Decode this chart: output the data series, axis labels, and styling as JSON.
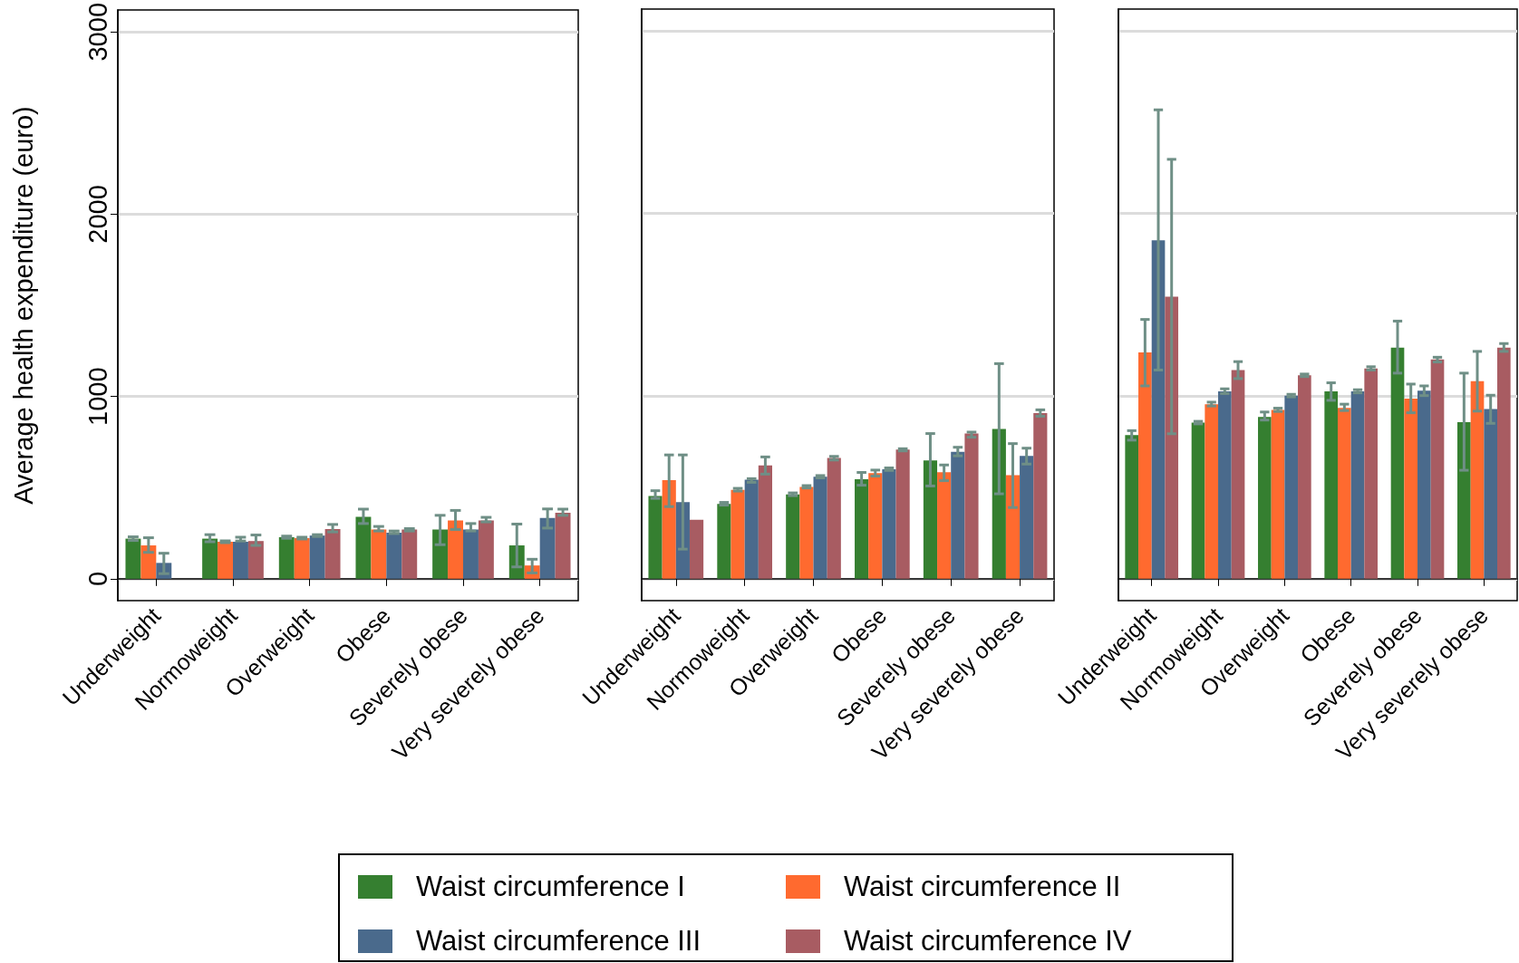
{
  "chart_data": [
    {
      "type": "bar",
      "ylabel": "Average health expenditure (euro)",
      "categories": [
        "Underweight",
        "Normoweight",
        "Overweight",
        "Obese",
        "Severely obese",
        "Very severely obese"
      ],
      "ylim": [
        -120,
        3120
      ],
      "yticks": [
        0,
        1000,
        2000,
        3000
      ],
      "grid": "y",
      "legend": "bottom",
      "series": [
        {
          "name": "Waist circumference I",
          "color": "#357f30",
          "values": [
            220,
            220,
            228,
            340,
            270,
            183
          ],
          "errors": [
            [
              210,
              230
            ],
            [
              203,
              242
            ],
            [
              222,
              234
            ],
            [
              303,
              382
            ],
            [
              187,
              348
            ],
            [
              65,
              300
            ]
          ]
        },
        {
          "name": "Waist circumference II",
          "color": "#ff6a2f",
          "values": [
            183,
            203,
            223,
            270,
            320,
            73
          ],
          "errors": [
            [
              145,
              225
            ],
            [
              198,
              208
            ],
            [
              218,
              228
            ],
            [
              262,
              287
            ],
            [
              270,
              375
            ],
            [
              32,
              107
            ]
          ]
        },
        {
          "name": "Waist circumference III",
          "color": "#4a6a8c",
          "values": [
            87,
            203,
            237,
            253,
            270,
            333
          ],
          "errors": [
            [
              28,
              140
            ],
            [
              207,
              228
            ],
            [
              232,
              242
            ],
            [
              248,
              262
            ],
            [
              262,
              303
            ],
            [
              278,
              383
            ]
          ]
        },
        {
          "name": "Waist circumference IV",
          "color": "#a85c62",
          "values": [
            null,
            207,
            273,
            270,
            320,
            362
          ],
          "errors": [
            null,
            [
              183,
              240
            ],
            [
              257,
              298
            ],
            [
              262,
              275
            ],
            [
              312,
              337
            ],
            [
              348,
              382
            ]
          ]
        }
      ]
    },
    {
      "type": "bar",
      "categories": [
        "Underweight",
        "Normoweight",
        "Overweight",
        "Obese",
        "Severely obese",
        "Very severely obese"
      ],
      "ylim": [
        -120,
        3120
      ],
      "yticks": [
        0,
        1000,
        2000,
        3000
      ],
      "grid": "y",
      "tick_labels": "x",
      "series": [
        {
          "color": "#357f30",
          "values": [
            453,
            410,
            462,
            545,
            648,
            820
          ],
          "errors": [
            [
              440,
              482
            ],
            [
              403,
              418
            ],
            [
              455,
              470
            ],
            [
              512,
              582
            ],
            [
              508,
              795
            ],
            [
              465,
              1178
            ]
          ]
        },
        {
          "color": "#ff6a2f",
          "values": [
            540,
            487,
            503,
            578,
            583,
            567
          ],
          "errors": [
            [
              395,
              678
            ],
            [
              480,
              495
            ],
            [
              497,
              510
            ],
            [
              562,
              595
            ],
            [
              537,
              623
            ],
            [
              390,
              740
            ]
          ]
        },
        {
          "color": "#4a6a8c",
          "values": [
            420,
            542,
            558,
            600,
            695,
            673
          ],
          "errors": [
            [
              162,
              678
            ],
            [
              528,
              548
            ],
            [
              552,
              565
            ],
            [
              593,
              607
            ],
            [
              673,
              720
            ],
            [
              628,
              715
            ]
          ]
        },
        {
          "color": "#a85c62",
          "values": [
            323,
            620,
            662,
            707,
            795,
            907
          ],
          "errors": [
            null,
            [
              573,
              667
            ],
            [
              650,
              670
            ],
            [
              700,
              712
            ],
            [
              775,
              803
            ],
            [
              890,
              925
            ]
          ]
        }
      ]
    },
    {
      "type": "bar",
      "categories": [
        "Underweight",
        "Normoweight",
        "Overweight",
        "Obese",
        "Severely obese",
        "Very severely obese"
      ],
      "ylim": [
        -120,
        3120
      ],
      "yticks": [
        0,
        1000,
        2000,
        3000
      ],
      "grid": "y",
      "tick_labels": "x",
      "series": [
        {
          "color": "#357f30",
          "values": [
            787,
            855,
            886,
            1026,
            1266,
            857
          ],
          "errors": [
            [
              759,
              811
            ],
            [
              848,
              862
            ],
            [
              869,
              913
            ],
            [
              977,
              1073
            ],
            [
              1126,
              1411
            ],
            [
              594,
              1126
            ]
          ]
        },
        {
          "color": "#ff6a2f",
          "values": [
            1240,
            956,
            925,
            935,
            986,
            1082
          ],
          "errors": [
            [
              1056,
              1420
            ],
            [
              946,
              967
            ],
            [
              916,
              934
            ],
            [
              921,
              956
            ],
            [
              909,
              1066
            ],
            [
              918,
              1245
            ]
          ]
        },
        {
          "color": "#4a6a8c",
          "values": [
            1853,
            1026,
            1003,
            1026,
            1030,
            930
          ],
          "errors": [
            [
              1143,
              2568
            ],
            [
              1014,
              1040
            ],
            [
              996,
              1010
            ],
            [
              1018,
              1035
            ],
            [
              1003,
              1056
            ],
            [
              851,
              1005
            ]
          ]
        },
        {
          "color": "#a85c62",
          "values": [
            1545,
            1143,
            1114,
            1152,
            1201,
            1266
          ],
          "errors": [
            [
              794,
              2297
            ],
            [
              1096,
              1189
            ],
            [
              1107,
              1121
            ],
            [
              1143,
              1161
            ],
            [
              1187,
              1213
            ],
            [
              1245,
              1288
            ]
          ]
        }
      ]
    }
  ]
}
